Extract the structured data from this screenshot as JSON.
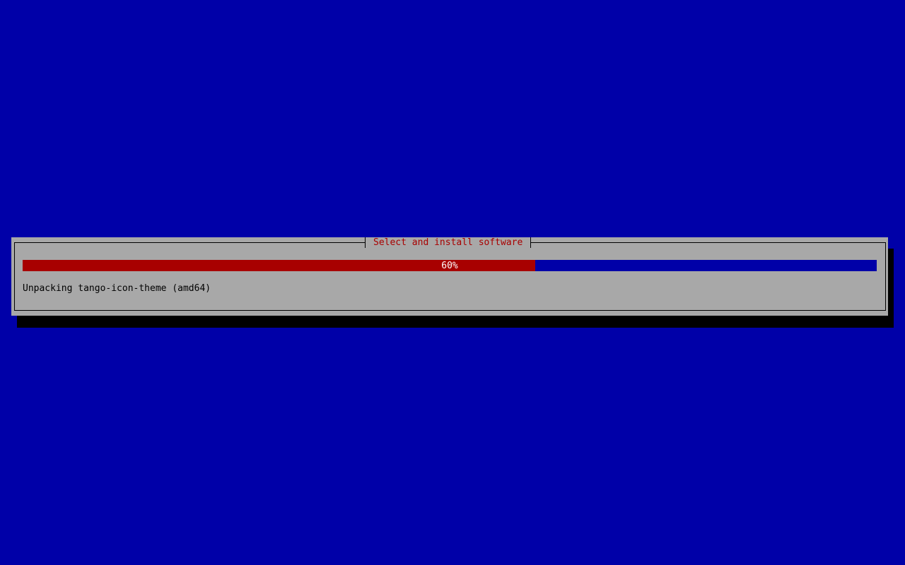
{
  "dialog": {
    "title": "Select and install software",
    "progress": {
      "percent": 60,
      "label": "60%"
    },
    "status": "Unpacking tango-icon-theme (amd64)"
  },
  "colors": {
    "background": "#0000a8",
    "dialog": "#a8a8a8",
    "progress_fill": "#a80000",
    "title_text": "#a80000"
  }
}
